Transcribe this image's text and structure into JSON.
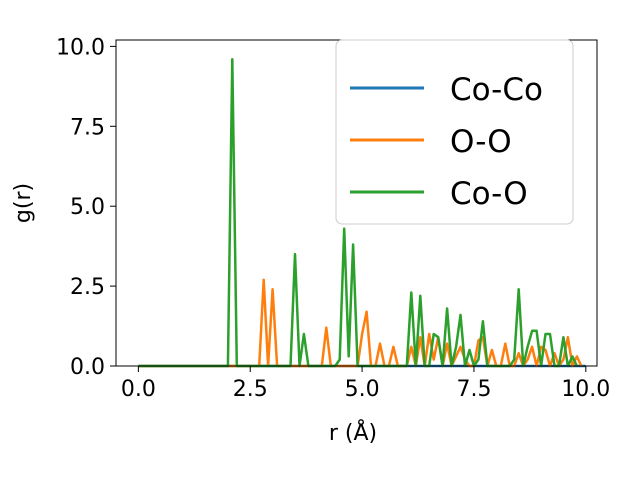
{
  "chart_data": {
    "type": "line",
    "xlabel": "r (Å)",
    "ylabel": "g(r)",
    "xlim": [
      -0.5,
      10.25
    ],
    "ylim": [
      0,
      10.2
    ],
    "xticks": [
      "0.0",
      "2.5",
      "5.0",
      "7.5",
      "10.0"
    ],
    "xtick_values": [
      0,
      2.5,
      5,
      7.5,
      10
    ],
    "yticks": [
      "0.0",
      "2.5",
      "5.0",
      "7.5",
      "10.0"
    ],
    "ytick_values": [
      0,
      2.5,
      5,
      7.5,
      10
    ],
    "grid": false,
    "legend_position": "top-right",
    "series": [
      {
        "name": "Co-Co",
        "color": "#1f77b4",
        "x": [
          0,
          2.0,
          10.0
        ],
        "y": [
          0,
          0,
          0
        ]
      },
      {
        "name": "O-O",
        "color": "#ff7f0e",
        "x": [
          0,
          2.7,
          2.8,
          2.9,
          3.0,
          3.1,
          4.1,
          4.2,
          4.3,
          4.8,
          4.9,
          5.0,
          5.1,
          5.2,
          5.3,
          5.4,
          5.5,
          5.6,
          5.7,
          5.8,
          6.0,
          6.1,
          6.2,
          6.3,
          6.4,
          6.5,
          6.6,
          6.7,
          6.8,
          6.9,
          7.0,
          7.1,
          7.2,
          7.3,
          7.4,
          7.5,
          7.6,
          7.7,
          7.8,
          7.9,
          8.0,
          8.1,
          8.2,
          8.3,
          8.4,
          8.5,
          8.6,
          8.7,
          8.8,
          8.9,
          9.0,
          9.1,
          9.2,
          9.3,
          9.4,
          9.5,
          9.6,
          9.7,
          9.8,
          9.9
        ],
        "y": [
          0,
          0,
          2.7,
          0,
          2.4,
          0,
          0,
          1.2,
          0,
          0,
          0,
          1.0,
          1.7,
          0,
          0,
          0.7,
          0,
          0,
          0.6,
          0,
          0,
          0.6,
          0,
          0.9,
          0,
          1.0,
          0.2,
          0.9,
          0,
          0.7,
          0,
          0.3,
          0.6,
          0.2,
          0,
          0,
          0.8,
          0.9,
          0,
          0.5,
          0,
          0,
          0.7,
          0,
          0,
          0.4,
          0,
          0.2,
          0.6,
          0,
          0.6,
          0.5,
          0,
          0.4,
          0,
          0.2,
          0.9,
          0,
          0.3,
          0
        ]
      },
      {
        "name": "Co-O",
        "color": "#2ca02c",
        "x": [
          0,
          2.0,
          2.1,
          2.2,
          3.3,
          3.4,
          3.5,
          3.6,
          3.7,
          3.8,
          3.9,
          4.3,
          4.4,
          4.5,
          4.6,
          4.7,
          4.8,
          4.9,
          5.9,
          6.0,
          6.1,
          6.2,
          6.3,
          6.4,
          6.5,
          6.6,
          6.7,
          6.8,
          6.9,
          7.0,
          7.1,
          7.2,
          7.3,
          7.4,
          7.5,
          7.6,
          7.7,
          7.8,
          7.9,
          8.0,
          8.1,
          8.2,
          8.3,
          8.4,
          8.5,
          8.6,
          8.7,
          8.8,
          8.9,
          9.0,
          9.1,
          9.2,
          9.3,
          9.4,
          9.5,
          9.6,
          9.7,
          9.8
        ],
        "y": [
          0,
          0,
          9.6,
          0,
          0,
          0,
          3.5,
          0,
          1.0,
          0,
          0,
          0,
          0,
          0.2,
          4.3,
          0.3,
          3.8,
          0,
          0,
          0,
          2.3,
          0,
          2.2,
          0,
          0,
          1.0,
          0.9,
          0,
          1.8,
          0,
          0.6,
          1.6,
          0,
          0.5,
          0,
          0.2,
          1.4,
          0,
          0,
          0,
          0,
          0,
          0,
          0.2,
          2.4,
          0,
          0.6,
          1.1,
          1.1,
          0,
          1.0,
          1.0,
          0,
          0,
          0.9,
          0,
          0.3,
          0
        ]
      }
    ]
  }
}
